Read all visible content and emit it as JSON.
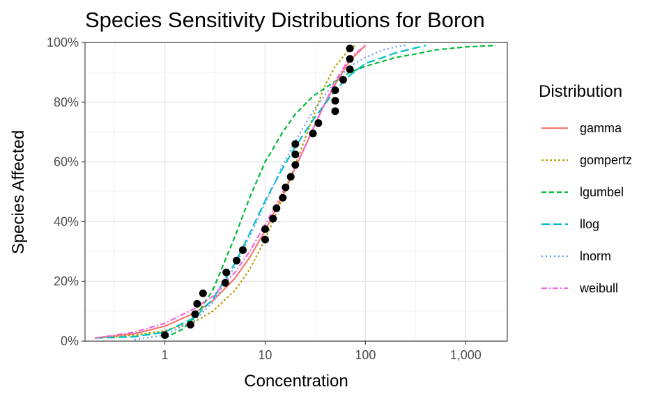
{
  "chart_data": {
    "type": "line",
    "title": "Species Sensitivity Distributions for Boron",
    "xlabel": "Concentration",
    "ylabel": "Species Affected",
    "x_scale": "log10",
    "xlim": [
      0.16,
      2600
    ],
    "ylim": [
      0,
      1
    ],
    "x_ticks": [
      {
        "value": 1,
        "label": "1"
      },
      {
        "value": 10,
        "label": "10"
      },
      {
        "value": 100,
        "label": "100"
      },
      {
        "value": 1000,
        "label": "1,000"
      }
    ],
    "y_ticks": [
      {
        "value": 0,
        "label": "0%"
      },
      {
        "value": 0.2,
        "label": "20%"
      },
      {
        "value": 0.4,
        "label": "40%"
      },
      {
        "value": 0.6,
        "label": "60%"
      },
      {
        "value": 0.8,
        "label": "80%"
      },
      {
        "value": 1,
        "label": "100%"
      }
    ],
    "grid": true,
    "legend": {
      "title": "Distribution",
      "position": "right"
    },
    "series": [
      {
        "name": "gamma",
        "color": "#F8766D",
        "dash": "solid",
        "x": [
          0.2,
          0.5,
          1,
          2,
          3,
          5,
          7,
          10,
          15,
          20,
          30,
          40,
          50,
          70,
          100
        ],
        "y": [
          0.01,
          0.025,
          0.05,
          0.095,
          0.135,
          0.21,
          0.28,
          0.37,
          0.49,
          0.58,
          0.71,
          0.8,
          0.86,
          0.94,
          0.99
        ]
      },
      {
        "name": "gompertz",
        "color": "#B79F00",
        "dash": "3,3",
        "x": [
          0.2,
          0.5,
          1,
          2,
          3,
          5,
          7,
          10,
          15,
          20,
          30,
          40,
          50,
          70,
          80
        ],
        "y": [
          0.01,
          0.02,
          0.035,
          0.065,
          0.1,
          0.17,
          0.24,
          0.34,
          0.48,
          0.59,
          0.75,
          0.86,
          0.92,
          0.98,
          0.99
        ]
      },
      {
        "name": "lgumbel",
        "color": "#00BA38",
        "dash": "7,4",
        "x": [
          1,
          1.5,
          2,
          3,
          5,
          7,
          10,
          15,
          20,
          30,
          50,
          70,
          100,
          200,
          300,
          500,
          1000,
          2000
        ],
        "y": [
          0.01,
          0.04,
          0.08,
          0.17,
          0.35,
          0.48,
          0.6,
          0.7,
          0.76,
          0.82,
          0.87,
          0.9,
          0.92,
          0.95,
          0.96,
          0.975,
          0.985,
          0.99
        ]
      },
      {
        "name": "llog",
        "color": "#00BFC4",
        "dash": "12,5",
        "x": [
          0.2,
          0.5,
          1,
          2,
          3,
          5,
          7,
          10,
          15,
          20,
          30,
          50,
          70,
          100,
          150,
          200,
          300,
          400
        ],
        "y": [
          0.01,
          0.015,
          0.03,
          0.08,
          0.14,
          0.26,
          0.36,
          0.47,
          0.58,
          0.65,
          0.74,
          0.84,
          0.89,
          0.93,
          0.95,
          0.965,
          0.98,
          0.99
        ]
      },
      {
        "name": "lnorm",
        "color": "#619CFF",
        "dash": "2,4",
        "x": [
          0.5,
          1,
          2,
          3,
          5,
          7,
          10,
          15,
          20,
          30,
          50,
          70,
          100,
          150,
          200,
          250
        ],
        "y": [
          0.005,
          0.02,
          0.07,
          0.13,
          0.25,
          0.35,
          0.46,
          0.59,
          0.67,
          0.77,
          0.87,
          0.92,
          0.95,
          0.975,
          0.985,
          0.99
        ]
      },
      {
        "name": "weibull",
        "color": "#F564E3",
        "dash": "8,3,2,3",
        "x": [
          0.2,
          0.5,
          1,
          2,
          3,
          5,
          7,
          10,
          15,
          20,
          30,
          50,
          70,
          100
        ],
        "y": [
          0.01,
          0.03,
          0.06,
          0.11,
          0.15,
          0.23,
          0.3,
          0.39,
          0.5,
          0.58,
          0.71,
          0.87,
          0.95,
          0.99
        ]
      }
    ],
    "points": {
      "color": "#000000",
      "x": [
        1,
        1.8,
        2,
        2.1,
        2.4,
        4,
        4.1,
        5.2,
        6,
        10,
        10,
        12,
        13,
        15,
        16,
        18,
        20,
        20,
        20,
        34,
        30,
        50,
        50,
        50,
        60,
        70,
        70,
        70
      ],
      "y": [
        0.02,
        0.055,
        0.09,
        0.125,
        0.16,
        0.195,
        0.23,
        0.27,
        0.305,
        0.34,
        0.375,
        0.41,
        0.445,
        0.48,
        0.515,
        0.55,
        0.59,
        0.625,
        0.66,
        0.73,
        0.695,
        0.77,
        0.805,
        0.84,
        0.875,
        0.91,
        0.945,
        0.98
      ]
    }
  }
}
